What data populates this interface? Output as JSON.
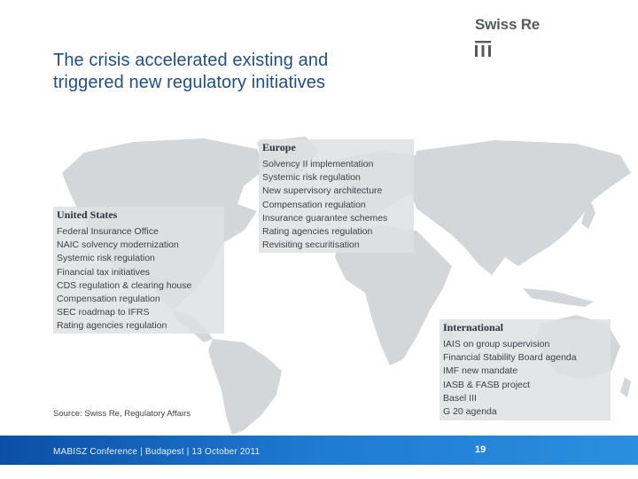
{
  "header": {
    "title_line1": "The crisis accelerated existing and",
    "title_line2": "triggered new regulatory initiatives",
    "brand": "Swiss Re"
  },
  "regions": {
    "us": {
      "heading": "United States",
      "items": [
        "Federal Insurance Office",
        "NAIC solvency modernization",
        "Systemic risk regulation",
        "Financial tax initiatives",
        "CDS regulation & clearing house",
        "Compensation regulation",
        "SEC roadmap to IFRS",
        "Rating agencies regulation"
      ]
    },
    "europe": {
      "heading": "Europe",
      "items": [
        "Solvency II implementation",
        "Systemic risk regulation",
        "New supervisory architecture",
        "Compensation regulation",
        "Insurance guarantee schemes",
        "Rating agencies regulation",
        "Revisiting securitisation"
      ]
    },
    "international": {
      "heading": "International",
      "items": [
        "IAIS on group supervision",
        "Financial Stability Board agenda",
        "IMF new mandate",
        "IASB & FASB project",
        "Basel III",
        "G 20 agenda"
      ]
    }
  },
  "source": "Source: Swiss Re, Regulatory Affairs",
  "footer": {
    "conference": "MABISZ Conference | Budapest | 13 October 2011",
    "page_number": "19"
  },
  "colors": {
    "title": "#1f4f8b",
    "map": "#d4d7da",
    "footer_start": "#0c4fa8",
    "footer_end": "#2b8fe0"
  }
}
